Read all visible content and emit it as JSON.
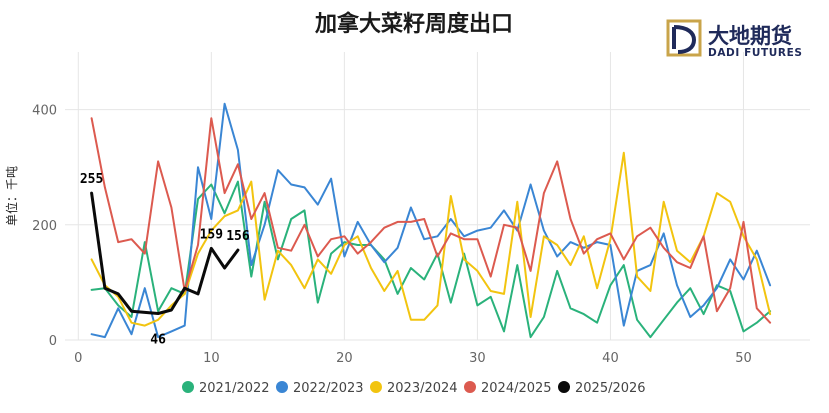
{
  "logo": {
    "cn_text": "大地期货",
    "en_text": "DADI FUTURES",
    "colors": {
      "navy": "#1f2a5a",
      "gold": "#c9a44a"
    }
  },
  "chart_data": {
    "type": "line",
    "title": "加拿大菜籽周度出口",
    "xlabel": "",
    "ylabel": "单位：千吨",
    "xlim": [
      -1,
      55
    ],
    "ylim": [
      0,
      500
    ],
    "xticks": [
      0,
      10,
      20,
      30,
      40,
      50
    ],
    "yticks": [
      0,
      200,
      400
    ],
    "grid": true,
    "legend_position": "bottom",
    "series": [
      {
        "name": "2021/2022",
        "color": "#2ab27b",
        "width": 2,
        "x": [
          1,
          2,
          3,
          4,
          5,
          6,
          7,
          8,
          9,
          10,
          11,
          12,
          13,
          14,
          15,
          16,
          17,
          18,
          19,
          20,
          21,
          22,
          23,
          24,
          25,
          26,
          27,
          28,
          29,
          30,
          31,
          32,
          33,
          34,
          35,
          36,
          37,
          38,
          39,
          40,
          41,
          42,
          43,
          44,
          45,
          46,
          47,
          48,
          49,
          50,
          51,
          52
        ],
        "values": [
          87,
          90,
          60,
          40,
          170,
          50,
          90,
          80,
          245,
          270,
          220,
          275,
          110,
          240,
          140,
          210,
          225,
          65,
          150,
          170,
          165,
          165,
          140,
          80,
          125,
          105,
          150,
          65,
          150,
          60,
          75,
          15,
          130,
          5,
          40,
          120,
          55,
          45,
          30,
          95,
          130,
          35,
          5,
          35,
          65,
          90,
          45,
          95,
          85,
          15,
          30,
          50
        ]
      },
      {
        "name": "2022/2023",
        "color": "#3a86d4",
        "width": 2,
        "x": [
          1,
          2,
          3,
          4,
          5,
          6,
          7,
          8,
          9,
          10,
          11,
          12,
          13,
          14,
          15,
          16,
          17,
          18,
          19,
          20,
          21,
          22,
          23,
          24,
          25,
          26,
          27,
          28,
          29,
          30,
          31,
          32,
          33,
          34,
          35,
          36,
          37,
          38,
          39,
          40,
          41,
          42,
          43,
          44,
          45,
          46,
          47,
          48,
          49,
          50,
          51,
          52
        ],
        "values": [
          10,
          5,
          55,
          10,
          90,
          5,
          15,
          25,
          300,
          210,
          410,
          330,
          130,
          200,
          295,
          270,
          265,
          235,
          280,
          145,
          205,
          165,
          135,
          160,
          230,
          175,
          180,
          210,
          180,
          190,
          195,
          225,
          190,
          270,
          190,
          145,
          170,
          160,
          170,
          165,
          25,
          120,
          130,
          185,
          95,
          40,
          60,
          90,
          140,
          105,
          155,
          95
        ]
      },
      {
        "name": "2023/2024",
        "color": "#f2c40f",
        "width": 2,
        "x": [
          1,
          2,
          3,
          4,
          5,
          6,
          7,
          8,
          9,
          10,
          11,
          12,
          13,
          14,
          15,
          16,
          17,
          18,
          19,
          20,
          21,
          22,
          23,
          24,
          25,
          26,
          27,
          28,
          29,
          30,
          31,
          32,
          33,
          34,
          35,
          36,
          37,
          38,
          39,
          40,
          41,
          42,
          43,
          44,
          45,
          46,
          47,
          48,
          49,
          50,
          51,
          52
        ],
        "values": [
          140,
          95,
          75,
          30,
          25,
          35,
          60,
          80,
          150,
          190,
          215,
          225,
          275,
          70,
          155,
          130,
          90,
          140,
          115,
          165,
          180,
          125,
          85,
          120,
          35,
          35,
          60,
          250,
          140,
          120,
          85,
          80,
          240,
          40,
          180,
          165,
          130,
          180,
          90,
          175,
          325,
          110,
          85,
          240,
          155,
          135,
          180,
          255,
          240,
          180,
          140,
          45
        ]
      },
      {
        "name": "2024/2025",
        "color": "#dc5a4f",
        "width": 2,
        "x": [
          1,
          2,
          3,
          4,
          5,
          6,
          7,
          8,
          9,
          10,
          11,
          12,
          13,
          14,
          15,
          16,
          17,
          18,
          19,
          20,
          21,
          22,
          23,
          24,
          25,
          26,
          27,
          28,
          29,
          30,
          31,
          32,
          33,
          34,
          35,
          36,
          37,
          38,
          39,
          40,
          41,
          42,
          43,
          44,
          45,
          46,
          47,
          48,
          49,
          50,
          51,
          52
        ],
        "values": [
          385,
          265,
          170,
          175,
          150,
          310,
          230,
          85,
          165,
          385,
          255,
          305,
          210,
          255,
          160,
          155,
          200,
          145,
          175,
          180,
          150,
          170,
          195,
          205,
          205,
          210,
          145,
          185,
          175,
          175,
          110,
          200,
          195,
          120,
          255,
          310,
          210,
          150,
          175,
          185,
          140,
          180,
          195,
          160,
          135,
          125,
          180,
          50,
          90,
          205,
          55,
          30
        ]
      },
      {
        "name": "2025/2026",
        "color": "#0a0a0a",
        "width": 3,
        "x": [
          1,
          2,
          3,
          4,
          5,
          6,
          7,
          8,
          9,
          10,
          11,
          12
        ],
        "values": [
          255,
          90,
          80,
          50,
          48,
          46,
          52,
          90,
          80,
          159,
          125,
          156
        ]
      }
    ],
    "data_labels": [
      {
        "series": "2025/2026",
        "x": 1,
        "text": "255"
      },
      {
        "series": "2025/2026",
        "x": 6,
        "text": "46"
      },
      {
        "series": "2025/2026",
        "x": 10,
        "text": "159"
      },
      {
        "series": "2025/2026",
        "x": 12,
        "text": "156"
      }
    ]
  }
}
